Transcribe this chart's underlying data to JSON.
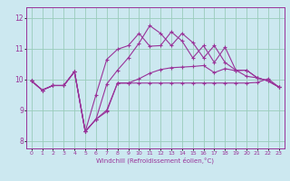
{
  "bg_color": "#cce8f0",
  "line_color": "#993399",
  "grid_color": "#99ccbb",
  "xlabel": "Windchill (Refroidissement éolien,°C)",
  "ylabel_ticks": [
    8,
    9,
    10,
    11,
    12
  ],
  "xlim": [
    -0.5,
    23.5
  ],
  "ylim": [
    7.75,
    12.35
  ],
  "xticks": [
    0,
    1,
    2,
    3,
    4,
    5,
    6,
    7,
    8,
    9,
    10,
    11,
    12,
    13,
    14,
    15,
    16,
    17,
    18,
    19,
    20,
    21,
    22,
    23
  ],
  "series": [
    [
      9.95,
      9.65,
      9.8,
      9.8,
      10.25,
      8.3,
      8.7,
      8.95,
      9.88,
      9.88,
      9.88,
      9.88,
      9.88,
      9.88,
      9.88,
      9.88,
      9.88,
      9.88,
      9.88,
      9.88,
      9.88,
      9.9,
      10.02,
      9.75
    ],
    [
      9.95,
      9.65,
      9.8,
      9.8,
      10.25,
      8.3,
      9.5,
      10.65,
      10.98,
      11.1,
      11.5,
      11.08,
      11.1,
      11.55,
      11.25,
      10.7,
      11.1,
      10.55,
      11.05,
      10.3,
      10.1,
      10.05,
      9.95,
      9.75
    ],
    [
      9.95,
      9.65,
      9.8,
      9.8,
      10.25,
      8.3,
      8.7,
      9.85,
      10.3,
      10.7,
      11.18,
      11.75,
      11.5,
      11.1,
      11.5,
      11.2,
      10.7,
      11.1,
      10.55,
      10.3,
      10.3,
      10.05,
      9.95,
      9.75
    ],
    [
      9.95,
      9.65,
      9.8,
      9.8,
      10.25,
      8.3,
      8.7,
      9.0,
      9.88,
      9.88,
      10.02,
      10.2,
      10.32,
      10.38,
      10.4,
      10.42,
      10.45,
      10.22,
      10.35,
      10.28,
      10.3,
      10.05,
      9.95,
      9.75
    ]
  ]
}
